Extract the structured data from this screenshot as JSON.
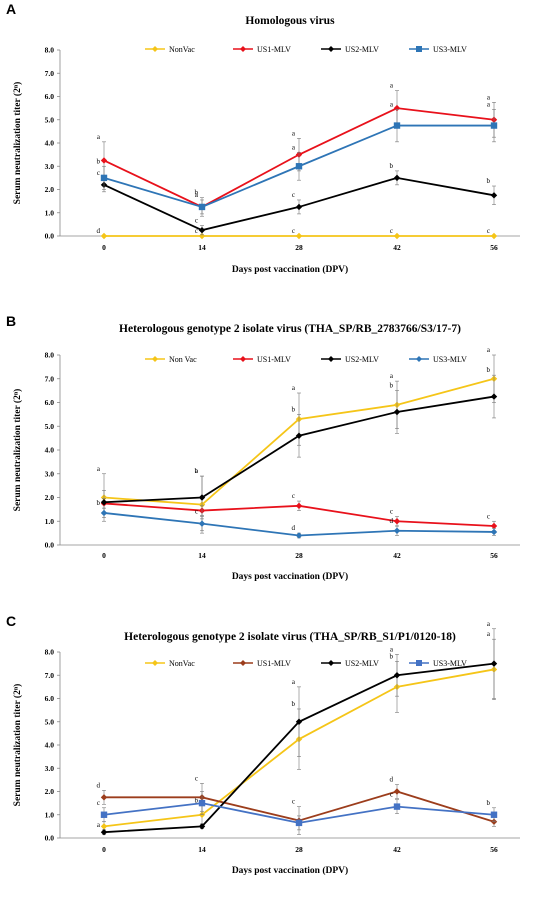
{
  "chart_data": [
    {
      "type": "line",
      "panel": "A",
      "title": "Homologous virus",
      "xlabel": "Days post vaccination (DPV)",
      "ylabel": "Serum neutralization titer (2ⁿ)",
      "x": [
        0,
        14,
        28,
        42,
        56
      ],
      "x_tick_labels": [
        "0",
        "14",
        "28",
        "42",
        "56"
      ],
      "ylim": [
        0,
        8
      ],
      "y_tick_labels": [
        "0.0",
        "1.0",
        "2.0",
        "3.0",
        "4.0",
        "5.0",
        "6.0",
        "7.0",
        "8.0"
      ],
      "legend_position": "top",
      "series": [
        {
          "name": "NonVac",
          "color": "#F5C518",
          "marker": "diamond",
          "values": [
            0,
            0,
            0,
            0,
            0
          ],
          "errors": [
            0,
            0,
            0,
            0,
            0
          ],
          "letters": [
            "d",
            "c",
            "c",
            "c",
            "c"
          ]
        },
        {
          "name": "US1-MLV",
          "color": "#E8111B",
          "marker": "diamond",
          "values": [
            3.25,
            1.25,
            3.5,
            5.5,
            5.0
          ],
          "errors": [
            0.8,
            0.3,
            0.7,
            0.75,
            0.75
          ],
          "letters": [
            "a",
            "a",
            "a",
            "a",
            "a"
          ]
        },
        {
          "name": "US2-MLV",
          "color": "#000000",
          "marker": "diamond",
          "values": [
            2.2,
            0.25,
            1.25,
            2.5,
            1.75
          ],
          "errors": [
            0.3,
            0.2,
            0.3,
            0.3,
            0.4
          ],
          "letters": [
            "c",
            "c",
            "c",
            "b",
            "b"
          ]
        },
        {
          "name": "US3-MLV",
          "color": "#2E75B6",
          "marker": "square",
          "values": [
            2.5,
            1.25,
            3.0,
            4.75,
            4.75
          ],
          "errors": [
            0.5,
            0.4,
            0.6,
            0.7,
            0.7
          ],
          "letters": [
            "b",
            "b",
            "a",
            "a",
            "a"
          ]
        }
      ]
    },
    {
      "type": "line",
      "panel": "B",
      "title": "Heterologous genotype 2 isolate virus (THA_SP/RB_2783766/S3/17-7)",
      "xlabel": "Days post vaccination (DPV)",
      "ylabel": "Serum neutralization titer (2ⁿ)",
      "x": [
        0,
        14,
        28,
        42,
        56
      ],
      "x_tick_labels": [
        "0",
        "14",
        "28",
        "42",
        "56"
      ],
      "ylim": [
        0,
        8
      ],
      "y_tick_labels": [
        "0.0",
        "1.0",
        "2.0",
        "3.0",
        "4.0",
        "5.0",
        "6.0",
        "7.0",
        "8.0"
      ],
      "legend_position": "top",
      "series": [
        {
          "name": "Non Vac",
          "color": "#F5C518",
          "marker": "diamond",
          "values": [
            2.0,
            1.7,
            5.3,
            5.9,
            7.0
          ],
          "errors": [
            1.0,
            1.2,
            1.1,
            1.0,
            1.0
          ],
          "letters": [
            "a",
            "b",
            "a",
            "a",
            "a"
          ]
        },
        {
          "name": "US1-MLV",
          "color": "#E8111B",
          "marker": "diamond",
          "values": [
            1.75,
            1.45,
            1.65,
            1.0,
            0.8
          ],
          "errors": [
            0.2,
            0.2,
            0.2,
            0.2,
            0.2
          ],
          "letters": [
            "",
            "",
            "c",
            "c",
            "c"
          ]
        },
        {
          "name": "US2-MLV",
          "color": "#000000",
          "marker": "diamond",
          "values": [
            1.8,
            2.0,
            4.6,
            5.6,
            6.25
          ],
          "errors": [
            0.5,
            0.9,
            0.9,
            0.9,
            0.9
          ],
          "letters": [
            "",
            "a",
            "b",
            "b",
            "b"
          ]
        },
        {
          "name": "US3-MLV",
          "color": "#2E75B6",
          "marker": "diamond",
          "values": [
            1.35,
            0.9,
            0.4,
            0.6,
            0.55
          ],
          "errors": [
            0.2,
            0.3,
            0.1,
            0.2,
            0.15
          ],
          "letters": [
            "b",
            "c",
            "d",
            "d",
            ""
          ]
        }
      ]
    },
    {
      "type": "line",
      "panel": "C",
      "title": "Heterologous genotype 2 isolate virus (THA_SP/RB_S1/P1/0120-18)",
      "xlabel": "Days post vaccination (DPV)",
      "ylabel": "Serum neutralization titer (2ⁿ)",
      "x": [
        0,
        14,
        28,
        42,
        56
      ],
      "x_tick_labels": [
        "0",
        "14",
        "28",
        "42",
        "56"
      ],
      "ylim": [
        0,
        8
      ],
      "y_tick_labels": [
        "0.0",
        "1.0",
        "2.0",
        "3.0",
        "4.0",
        "5.0",
        "6.0",
        "7.0",
        "8.0"
      ],
      "legend_position": "top",
      "series": [
        {
          "name": "NonVac",
          "color": "#F5C518",
          "marker": "diamond",
          "values": [
            0.5,
            1.0,
            4.25,
            6.5,
            7.25
          ],
          "errors": [
            0.2,
            0.4,
            1.3,
            1.1,
            1.3
          ],
          "letters": [
            "",
            "b",
            "b",
            "b",
            "a"
          ]
        },
        {
          "name": "US1-MLV",
          "color": "#9C3D1C",
          "marker": "diamond",
          "values": [
            1.75,
            1.75,
            0.75,
            2.0,
            0.7
          ],
          "errors": [
            0.3,
            0.6,
            0.6,
            0.3,
            0.2
          ],
          "letters": [
            "d",
            "c",
            "c",
            "d",
            ""
          ]
        },
        {
          "name": "US2-MLV",
          "color": "#000000",
          "marker": "diamond",
          "values": [
            0.25,
            0.5,
            5.0,
            7.0,
            7.5
          ],
          "errors": [
            0.1,
            0.1,
            1.5,
            0.9,
            1.5
          ],
          "letters": [
            "a",
            "",
            "a",
            "a",
            "a"
          ]
        },
        {
          "name": "US3-MLV",
          "color": "#4472C4",
          "marker": "square",
          "values": [
            1.0,
            1.5,
            0.65,
            1.35,
            1.0
          ],
          "errors": [
            0.3,
            0.5,
            0.3,
            0.3,
            0.3
          ],
          "letters": [
            "c",
            "",
            "",
            "c",
            "b"
          ]
        }
      ]
    }
  ]
}
